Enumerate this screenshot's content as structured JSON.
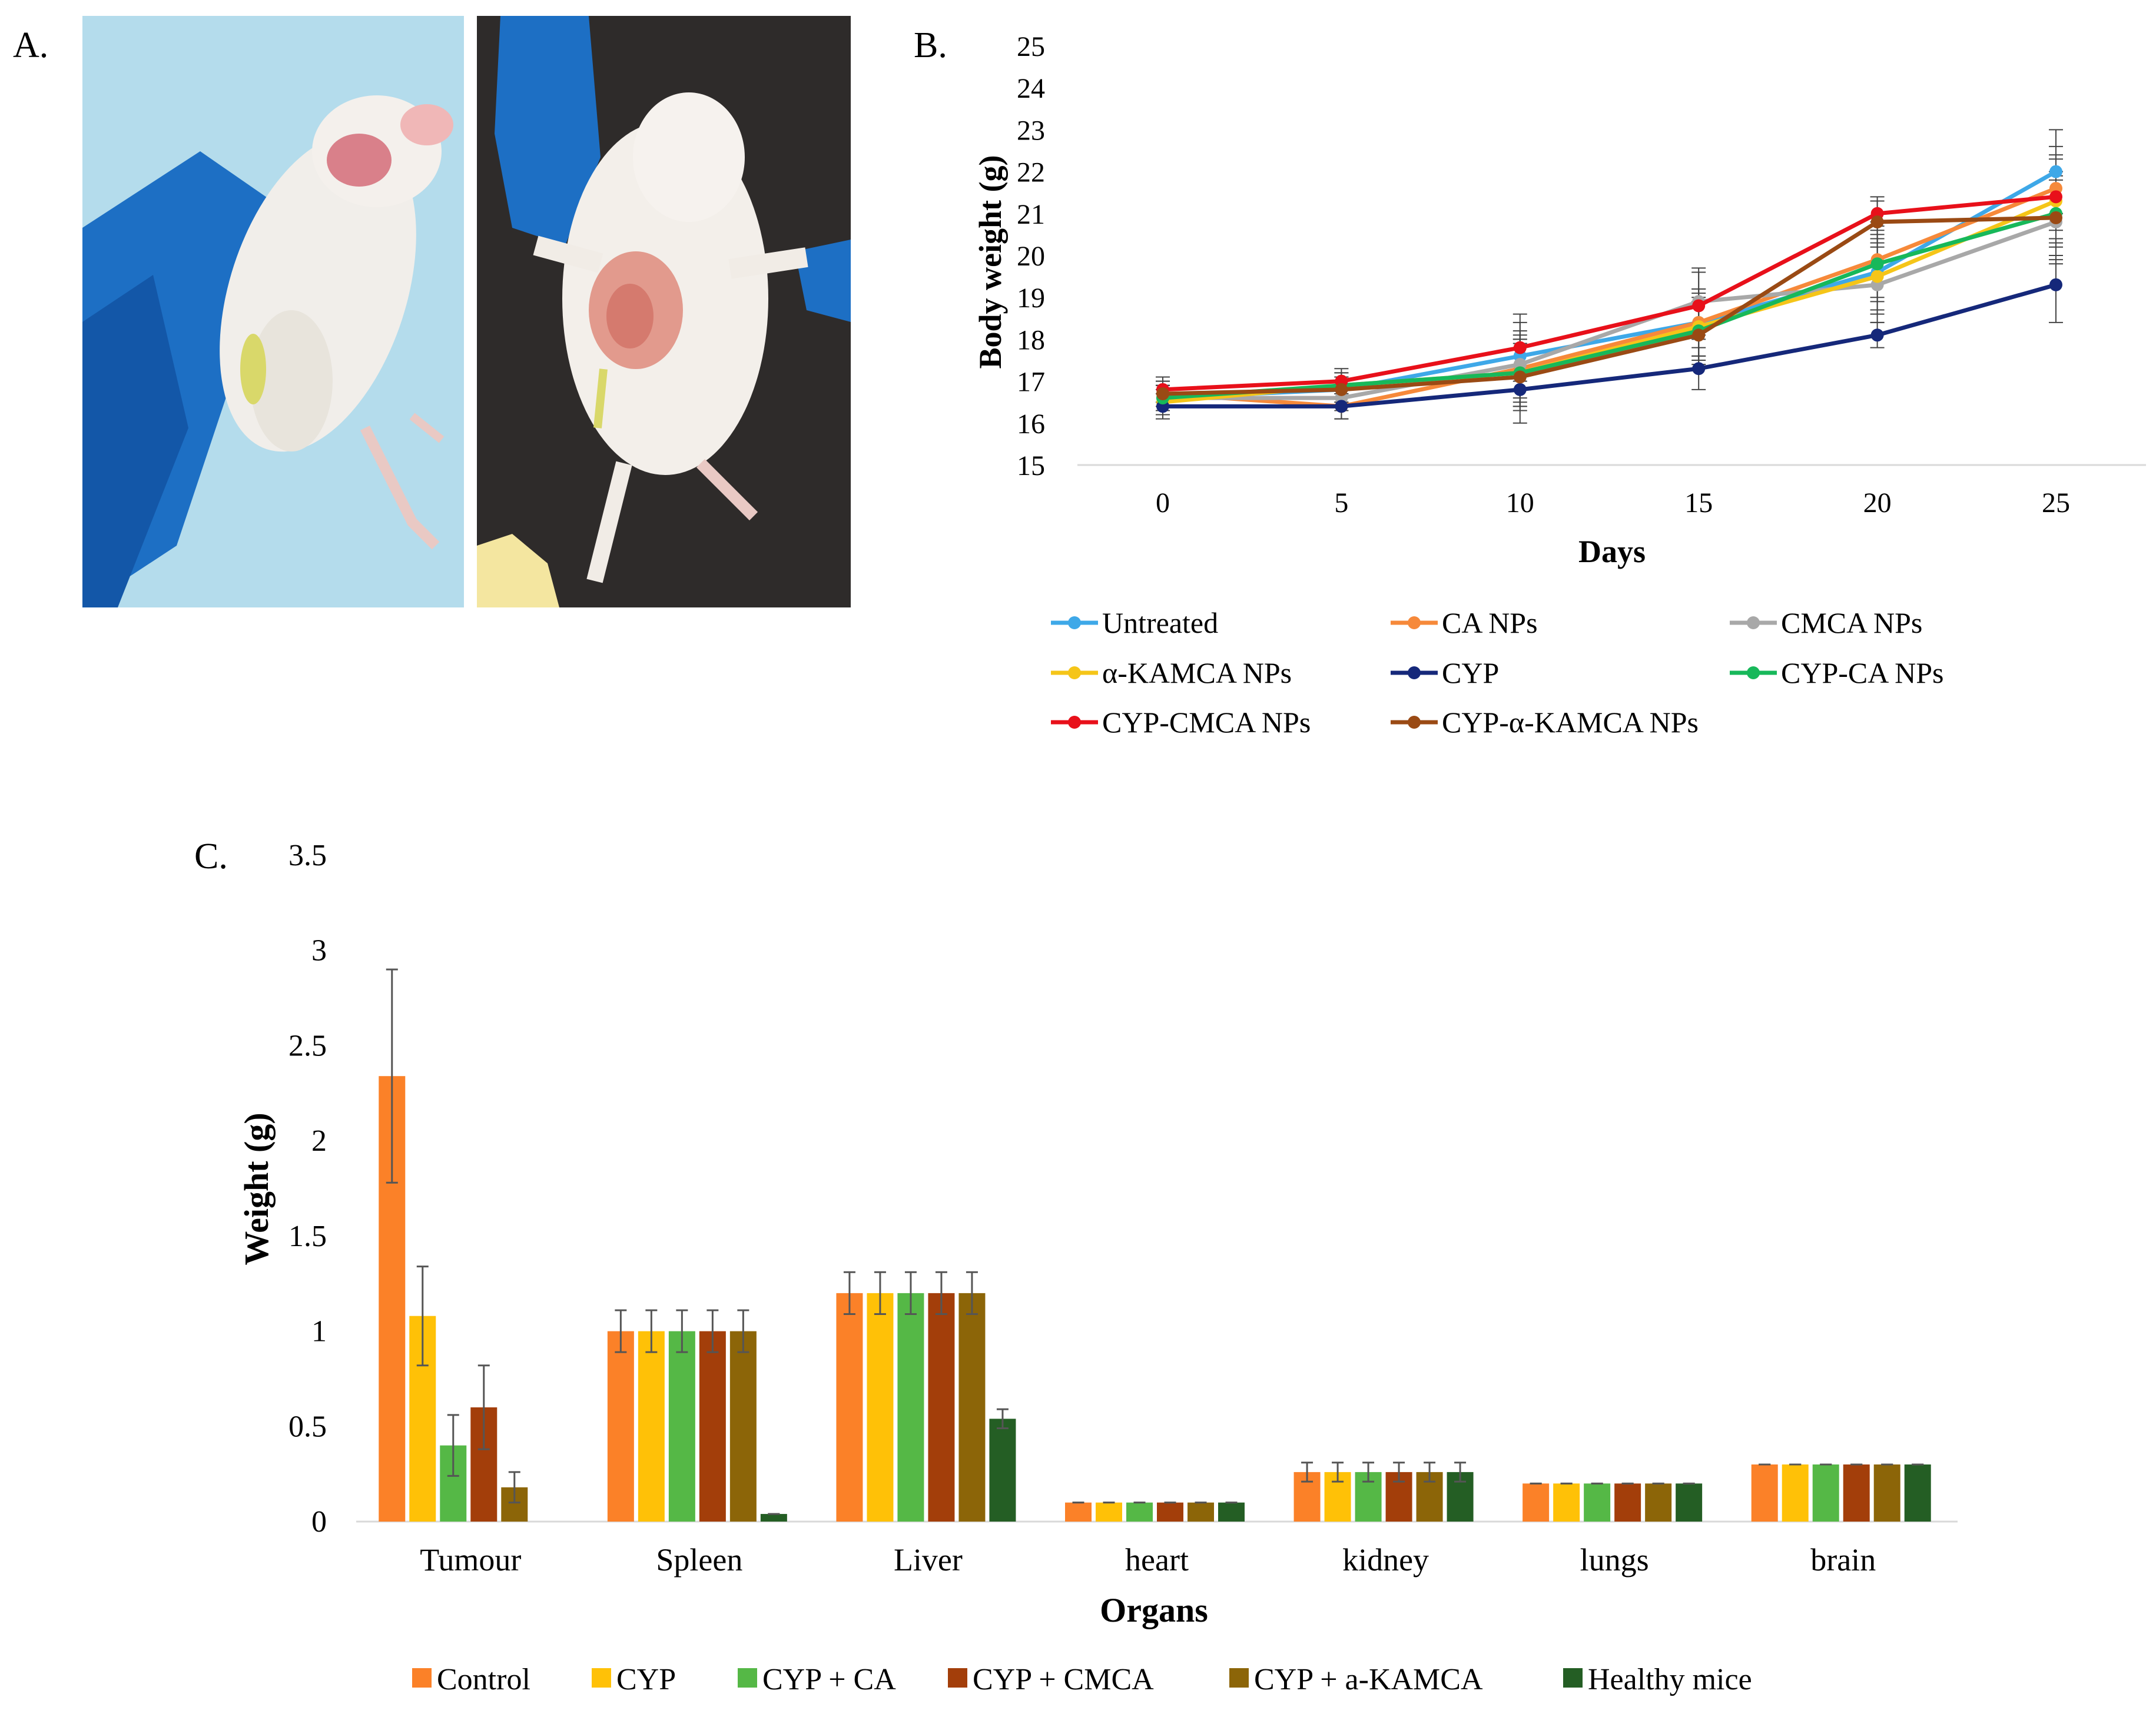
{
  "panels": {
    "a_label": "A.",
    "b_label": "B.",
    "c_label": "C."
  },
  "colors": {
    "untreated": "#3ea8e8",
    "ca_nps": "#f6893a",
    "cmca_nps": "#a8a8a8",
    "akamca_nps": "#f5c518",
    "cyp": "#15287a",
    "cyp_ca_nps": "#17b85a",
    "cyp_cmca_nps": "#e8101a",
    "cyp_akamca_nps": "#9a4a14",
    "bar_control": "#fb8128",
    "bar_cyp": "#ffc107",
    "bar_cyp_ca": "#55b846",
    "bar_cyp_cmca": "#a33e0a",
    "bar_cyp_akamca": "#8c6508",
    "bar_healthy": "#245e24"
  },
  "chart_data": [
    {
      "id": "body-weight",
      "type": "line",
      "title": "",
      "xlabel": "Days",
      "ylabel": "Body weight (g)",
      "x": [
        0,
        5,
        10,
        15,
        20,
        25
      ],
      "ylim": [
        15,
        25
      ],
      "yticks": [
        15,
        16,
        17,
        18,
        19,
        20,
        21,
        22,
        23,
        24,
        25
      ],
      "legend_position": "bottom",
      "series": [
        {
          "key": "untreated",
          "name": "Untreated",
          "values": [
            16.6,
            16.8,
            17.6,
            18.4,
            19.6,
            22.0
          ],
          "errors": [
            0.3,
            0.3,
            0.8,
            0.8,
            0.9,
            1.0
          ]
        },
        {
          "key": "ca_nps",
          "name": "CA NPs",
          "values": [
            16.7,
            16.4,
            17.3,
            18.4,
            19.9,
            21.6
          ],
          "errors": [
            0.3,
            0.3,
            0.8,
            0.8,
            0.9,
            1.0
          ]
        },
        {
          "key": "cmca_nps",
          "name": "CMCA NPs",
          "values": [
            16.6,
            16.6,
            17.4,
            18.9,
            19.3,
            20.8
          ],
          "errors": [
            0.3,
            0.3,
            0.8,
            0.8,
            0.9,
            1.0
          ]
        },
        {
          "key": "akamca_nps",
          "name": "α-KAMCA NPs",
          "values": [
            16.5,
            16.9,
            17.2,
            18.3,
            19.5,
            21.3
          ],
          "errors": [
            0.3,
            0.3,
            0.8,
            0.8,
            0.9,
            1.0
          ]
        },
        {
          "key": "cyp",
          "name": "CYP",
          "values": [
            16.4,
            16.4,
            16.8,
            17.3,
            18.1,
            19.3
          ],
          "errors": [
            0.3,
            0.3,
            0.8,
            0.5,
            0.3,
            0.9
          ]
        },
        {
          "key": "cyp_ca_nps",
          "name": "CYP-CA NPs",
          "values": [
            16.6,
            16.9,
            17.2,
            18.2,
            19.8,
            21.0
          ],
          "errors": [
            0.3,
            0.3,
            0.8,
            0.8,
            0.9,
            1.0
          ]
        },
        {
          "key": "cyp_cmca_nps",
          "name": "CYP-CMCA NPs",
          "values": [
            16.8,
            17.0,
            17.8,
            18.8,
            21.0,
            21.4
          ],
          "errors": [
            0.3,
            0.3,
            0.8,
            0.8,
            0.4,
            1.0
          ]
        },
        {
          "key": "cyp_akamca_nps",
          "name": "CYP-α-KAMCA NPs",
          "values": [
            16.7,
            16.8,
            17.1,
            18.1,
            20.8,
            20.9
          ],
          "errors": [
            0.3,
            0.3,
            0.8,
            0.8,
            0.5,
            1.0
          ]
        }
      ]
    },
    {
      "id": "organ-weight",
      "type": "bar",
      "title": "",
      "xlabel": "Organs",
      "ylabel": "Weight (g)",
      "categories": [
        "Tumour",
        "Spleen",
        "Liver",
        "heart",
        "kidney",
        "lungs",
        "brain"
      ],
      "ylim": [
        0,
        3.5
      ],
      "yticks": [
        0,
        0.5,
        1,
        1.5,
        2,
        2.5,
        3,
        3.5
      ],
      "ytick_labels": [
        "0",
        "0.5",
        "1",
        "1.5",
        "2",
        "2.5",
        "3",
        "3.5"
      ],
      "legend_position": "bottom",
      "series": [
        {
          "key": "bar_control",
          "name": "Control",
          "values": [
            2.34,
            1.0,
            1.2,
            0.1,
            0.26,
            0.2,
            0.3
          ],
          "errors": [
            0.56,
            0.11,
            0.11,
            0.0,
            0.05,
            0.0,
            0.0
          ]
        },
        {
          "key": "bar_cyp",
          "name": "CYP",
          "values": [
            1.08,
            1.0,
            1.2,
            0.1,
            0.26,
            0.2,
            0.3
          ],
          "errors": [
            0.26,
            0.11,
            0.11,
            0.0,
            0.05,
            0.0,
            0.0
          ]
        },
        {
          "key": "bar_cyp_ca",
          "name": "CYP + CA",
          "values": [
            0.4,
            1.0,
            1.2,
            0.1,
            0.26,
            0.2,
            0.3
          ],
          "errors": [
            0.16,
            0.11,
            0.11,
            0.0,
            0.05,
            0.0,
            0.0
          ]
        },
        {
          "key": "bar_cyp_cmca",
          "name": "CYP + CMCA",
          "values": [
            0.6,
            1.0,
            1.2,
            0.1,
            0.26,
            0.2,
            0.3
          ],
          "errors": [
            0.22,
            0.11,
            0.11,
            0.0,
            0.05,
            0.0,
            0.0
          ]
        },
        {
          "key": "bar_cyp_akamca",
          "name": "CYP + a-KAMCA",
          "values": [
            0.18,
            1.0,
            1.2,
            0.1,
            0.26,
            0.2,
            0.3
          ],
          "errors": [
            0.08,
            0.11,
            0.11,
            0.0,
            0.05,
            0.0,
            0.0
          ]
        },
        {
          "key": "bar_healthy",
          "name": "Healthy mice",
          "values": [
            0,
            0.04,
            0.54,
            0.1,
            0.26,
            0.2,
            0.3
          ],
          "errors": [
            0,
            0.0,
            0.05,
            0.0,
            0.05,
            0.0,
            0.0
          ]
        }
      ]
    }
  ]
}
